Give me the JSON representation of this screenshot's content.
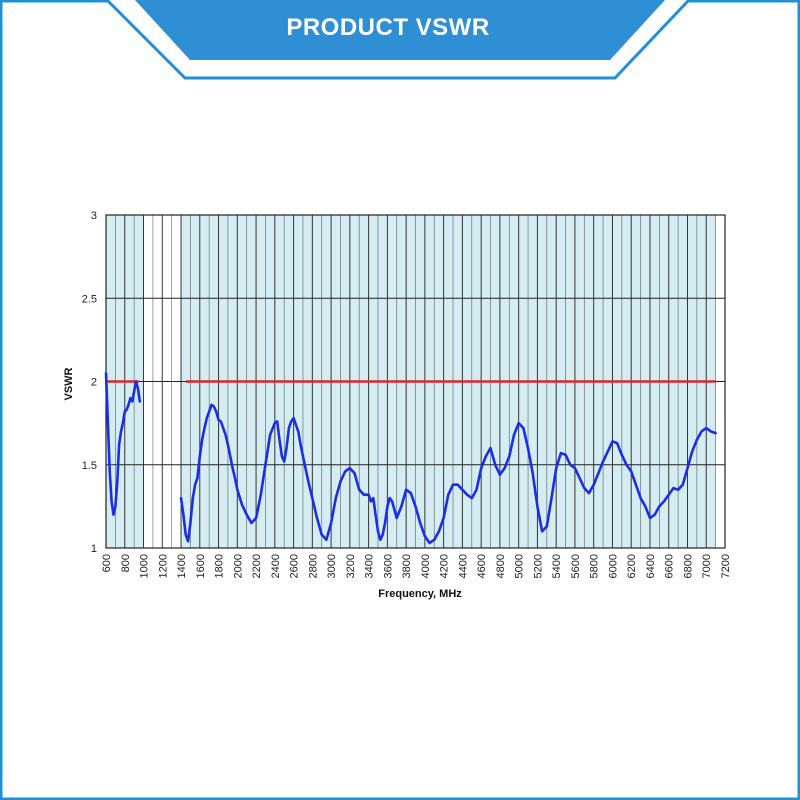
{
  "header": {
    "title": "PRODUCT  VSWR"
  },
  "colors": {
    "frame": "#1f8fd8",
    "banner": "#2e8fd4",
    "plot_fill": "#d4ecf2",
    "grid": "#222222",
    "curve": "#1a2ee8",
    "limit": "#e02424"
  },
  "chart_data": {
    "type": "line",
    "title": "",
    "xlabel": "Frequency, MHz",
    "ylabel": "VSWR",
    "xlim": [
      600,
      7200
    ],
    "ylim": [
      1,
      3
    ],
    "xticks": [
      600,
      800,
      1000,
      1200,
      1400,
      1600,
      1800,
      2000,
      2200,
      2400,
      2600,
      2800,
      3000,
      3200,
      3400,
      3600,
      3800,
      4000,
      4200,
      4400,
      4600,
      4800,
      5000,
      5200,
      5400,
      5600,
      5800,
      6000,
      6200,
      6400,
      6600,
      6800,
      7000,
      7200
    ],
    "yticks": [
      1,
      1.5,
      2,
      2.5,
      3
    ],
    "grid": true,
    "limit_line": {
      "value": 2,
      "segments": [
        [
          600,
          950
        ],
        [
          1450,
          7100
        ]
      ]
    },
    "series": [
      {
        "segment": 1,
        "x": [
          600,
          620,
          640,
          660,
          680,
          700,
          720,
          740,
          760,
          780,
          800,
          820,
          840,
          860,
          880,
          900,
          920,
          940,
          960
        ],
        "y": [
          2.05,
          1.75,
          1.45,
          1.28,
          1.2,
          1.25,
          1.4,
          1.62,
          1.7,
          1.75,
          1.82,
          1.83,
          1.86,
          1.9,
          1.88,
          1.94,
          2.0,
          1.96,
          1.88
        ]
      },
      {
        "segment": 2,
        "x": [
          1400,
          1425,
          1450,
          1475,
          1500,
          1525,
          1550,
          1575,
          1600,
          1625,
          1650,
          1675,
          1700,
          1725,
          1750,
          1775,
          1800,
          1825,
          1850,
          1875,
          1900,
          1925,
          1950,
          1975,
          2000,
          2050,
          2100,
          2150,
          2200,
          2250,
          2300,
          2350,
          2400,
          2425,
          2450,
          2475,
          2500,
          2525,
          2550,
          2575,
          2600,
          2625,
          2650,
          2675,
          2700,
          2750,
          2800,
          2850,
          2900,
          2950,
          3000,
          3050,
          3100,
          3150,
          3200,
          3250,
          3300,
          3350,
          3400,
          3425,
          3450,
          3475,
          3500,
          3525,
          3550,
          3575,
          3600,
          3625,
          3650,
          3700,
          3750,
          3800,
          3850,
          3900,
          3950,
          4000,
          4050,
          4100,
          4150,
          4200,
          4250,
          4300,
          4350,
          4400,
          4450,
          4500,
          4550,
          4600,
          4650,
          4700,
          4750,
          4800,
          4850,
          4900,
          4950,
          5000,
          5050,
          5100,
          5150,
          5200,
          5250,
          5300,
          5350,
          5400,
          5450,
          5500,
          5550,
          5600,
          5650,
          5700,
          5750,
          5800,
          5850,
          5900,
          5950,
          6000,
          6050,
          6100,
          6150,
          6200,
          6250,
          6300,
          6350,
          6400,
          6450,
          6500,
          6550,
          6600,
          6650,
          6700,
          6750,
          6800,
          6850,
          6900,
          6950,
          7000,
          7050,
          7100
        ],
        "y": [
          1.3,
          1.2,
          1.08,
          1.04,
          1.15,
          1.3,
          1.38,
          1.42,
          1.55,
          1.65,
          1.72,
          1.78,
          1.82,
          1.86,
          1.85,
          1.82,
          1.77,
          1.76,
          1.72,
          1.68,
          1.62,
          1.55,
          1.48,
          1.42,
          1.35,
          1.26,
          1.2,
          1.15,
          1.18,
          1.32,
          1.5,
          1.68,
          1.75,
          1.76,
          1.65,
          1.55,
          1.52,
          1.6,
          1.72,
          1.76,
          1.78,
          1.74,
          1.7,
          1.62,
          1.55,
          1.42,
          1.3,
          1.18,
          1.08,
          1.05,
          1.15,
          1.3,
          1.4,
          1.46,
          1.48,
          1.45,
          1.35,
          1.32,
          1.32,
          1.28,
          1.3,
          1.2,
          1.1,
          1.05,
          1.08,
          1.15,
          1.25,
          1.3,
          1.28,
          1.18,
          1.25,
          1.35,
          1.33,
          1.25,
          1.15,
          1.07,
          1.03,
          1.05,
          1.1,
          1.18,
          1.32,
          1.38,
          1.38,
          1.35,
          1.32,
          1.3,
          1.35,
          1.48,
          1.55,
          1.6,
          1.5,
          1.44,
          1.48,
          1.55,
          1.68,
          1.75,
          1.72,
          1.6,
          1.45,
          1.25,
          1.1,
          1.13,
          1.3,
          1.48,
          1.57,
          1.56,
          1.5,
          1.48,
          1.42,
          1.36,
          1.33,
          1.38,
          1.45,
          1.52,
          1.58,
          1.64,
          1.63,
          1.56,
          1.5,
          1.46,
          1.38,
          1.3,
          1.25,
          1.18,
          1.2,
          1.25,
          1.28,
          1.32,
          1.36,
          1.35,
          1.38,
          1.48,
          1.58,
          1.65,
          1.7,
          1.72,
          1.7,
          1.69
        ]
      }
    ]
  }
}
